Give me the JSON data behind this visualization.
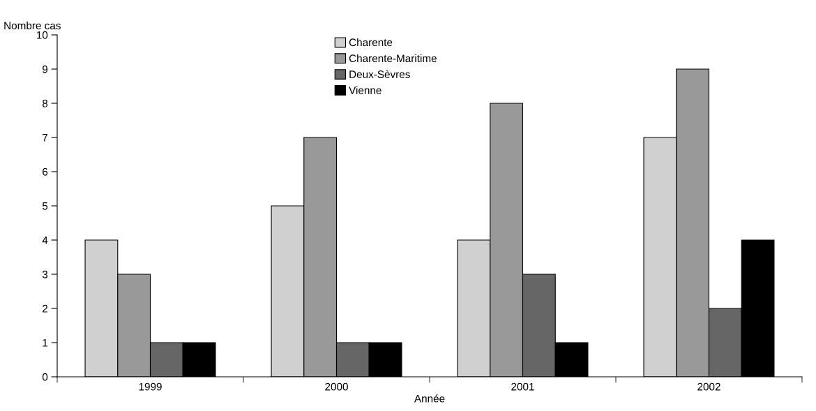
{
  "chart_data": {
    "type": "bar",
    "xlabel": "Année",
    "ylabel": "Nombre cas",
    "categories": [
      "1999",
      "2000",
      "2001",
      "2002"
    ],
    "series": [
      {
        "name": "Charente",
        "color": "#d0d0d0",
        "values": [
          4,
          5,
          4,
          7
        ]
      },
      {
        "name": "Charente-Maritime",
        "color": "#999999",
        "values": [
          3,
          7,
          8,
          9
        ]
      },
      {
        "name": "Deux-Sèvres",
        "color": "#666666",
        "values": [
          1,
          1,
          3,
          2
        ]
      },
      {
        "name": "Vienne",
        "color": "#000000",
        "values": [
          1,
          1,
          1,
          4
        ]
      }
    ],
    "ylim": [
      0,
      10
    ],
    "yticks": [
      0,
      1,
      2,
      3,
      4,
      5,
      6,
      7,
      8,
      9,
      10
    ],
    "grid": false,
    "legend": "top"
  }
}
